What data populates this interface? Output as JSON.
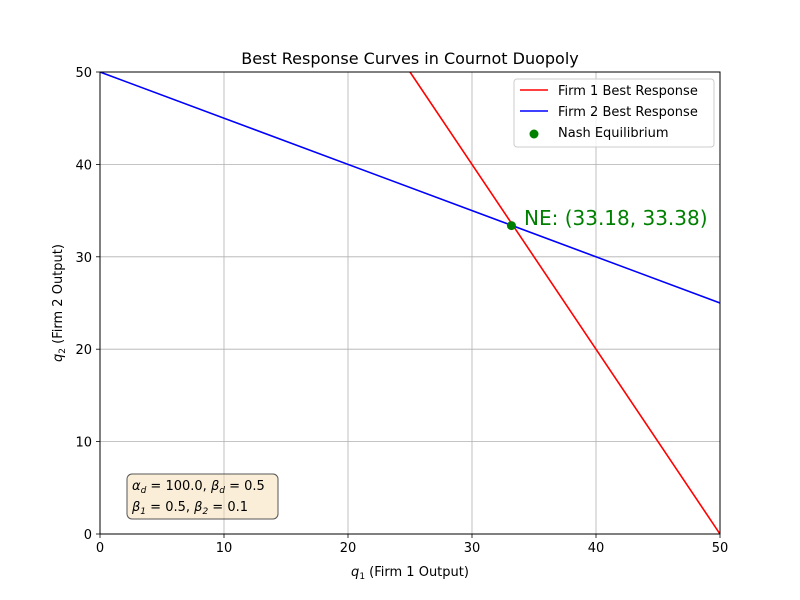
{
  "chart_data": {
    "type": "line",
    "title": "Best Response Curves in Cournot Duopoly",
    "xlabel": {
      "var": "q",
      "sub": "1",
      "rest": " (Firm 1 Output)"
    },
    "ylabel": {
      "var": "q",
      "sub": "2",
      "rest": " (Firm 2 Output)"
    },
    "xlim": [
      0,
      50
    ],
    "ylim": [
      0,
      50
    ],
    "xticks": [
      0,
      10,
      20,
      30,
      40,
      50
    ],
    "yticks": [
      0,
      10,
      20,
      30,
      40,
      50
    ],
    "grid": true,
    "legend_position": "top-right",
    "series": [
      {
        "name": "Firm 1 Best Response",
        "color": "#ff0000",
        "x": [
          25,
          50
        ],
        "y": [
          50,
          0
        ]
      },
      {
        "name": "Firm 2 Best Response",
        "color": "#0000ff",
        "x": [
          0,
          50
        ],
        "y": [
          50,
          25
        ]
      }
    ],
    "points": [
      {
        "name": "Nash Equilibrium",
        "color": "#008000",
        "x": 33.18,
        "y": 33.38
      }
    ],
    "annotation": {
      "text": "NE: (33.18, 33.38)",
      "color": "#008000"
    },
    "params_box": {
      "line1": [
        {
          "sym": "α",
          "sub": "d",
          "val": " = 100.0, "
        },
        {
          "sym": "β",
          "sub": "d",
          "val": " = 0.5"
        }
      ],
      "line2": [
        {
          "sym": "β",
          "sub": "1",
          "val": " = 0.5, "
        },
        {
          "sym": "β",
          "sub": "2",
          "val": " = 0.1"
        }
      ]
    }
  }
}
